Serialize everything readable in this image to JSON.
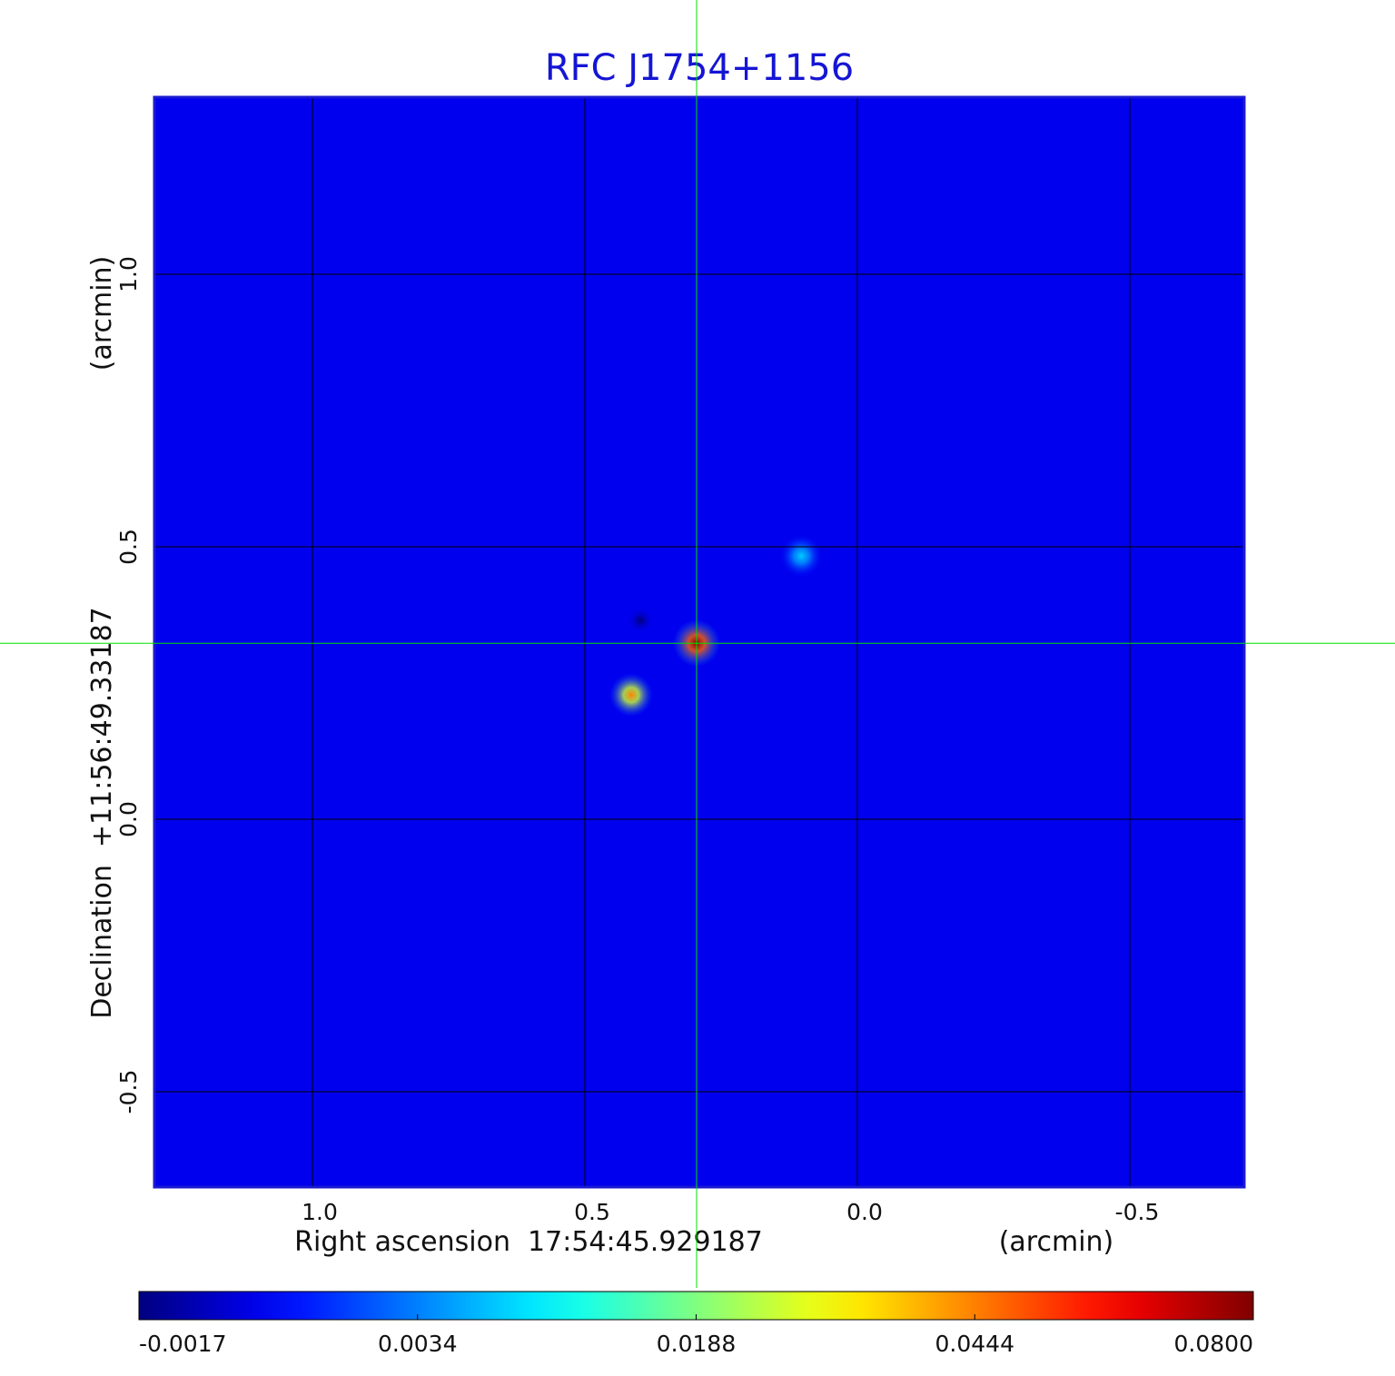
{
  "chart_data": {
    "type": "image",
    "title": "RFC J1754+1156",
    "xlabel": "Right ascension  17:54:45.929187",
    "xunit": "(arcmin)",
    "ylabel": "Declination  +11:56:49.33187",
    "yunit": "(arcmin)",
    "xlim": [
      1.29,
      -0.71
    ],
    "ylim": [
      -0.675,
      1.325
    ],
    "xticks": [
      {
        "value": 1,
        "label": "1.0"
      },
      0.5,
      {
        "value": 0,
        "label": "0.0"
      },
      -0.5
    ],
    "yticks": [
      {
        "value": 1,
        "label": "1.0"
      },
      0.5,
      {
        "value": 0,
        "label": "0.0"
      },
      -0.5
    ],
    "grid": true,
    "colormap": "jet",
    "background": 0.0005,
    "sources": [
      {
        "x": 0.295,
        "y": 0.323,
        "peak": 0.08
      },
      {
        "x": 0.415,
        "y": 0.228,
        "peak": 0.044
      },
      {
        "x": 0.103,
        "y": 0.483,
        "peak": 0.008
      },
      {
        "x": 0.398,
        "y": 0.365,
        "peak": -0.0017
      }
    ],
    "crosshair": {
      "x": 0.295,
      "y": 0.323,
      "color": "#00e000"
    },
    "colorbar": {
      "lim": [
        -0.0017,
        0.08
      ],
      "ticks": [
        -0.0017,
        0.0034,
        0.0188,
        0.0444,
        {
          "value": 0.08,
          "label": "0.0800"
        }
      ]
    }
  }
}
